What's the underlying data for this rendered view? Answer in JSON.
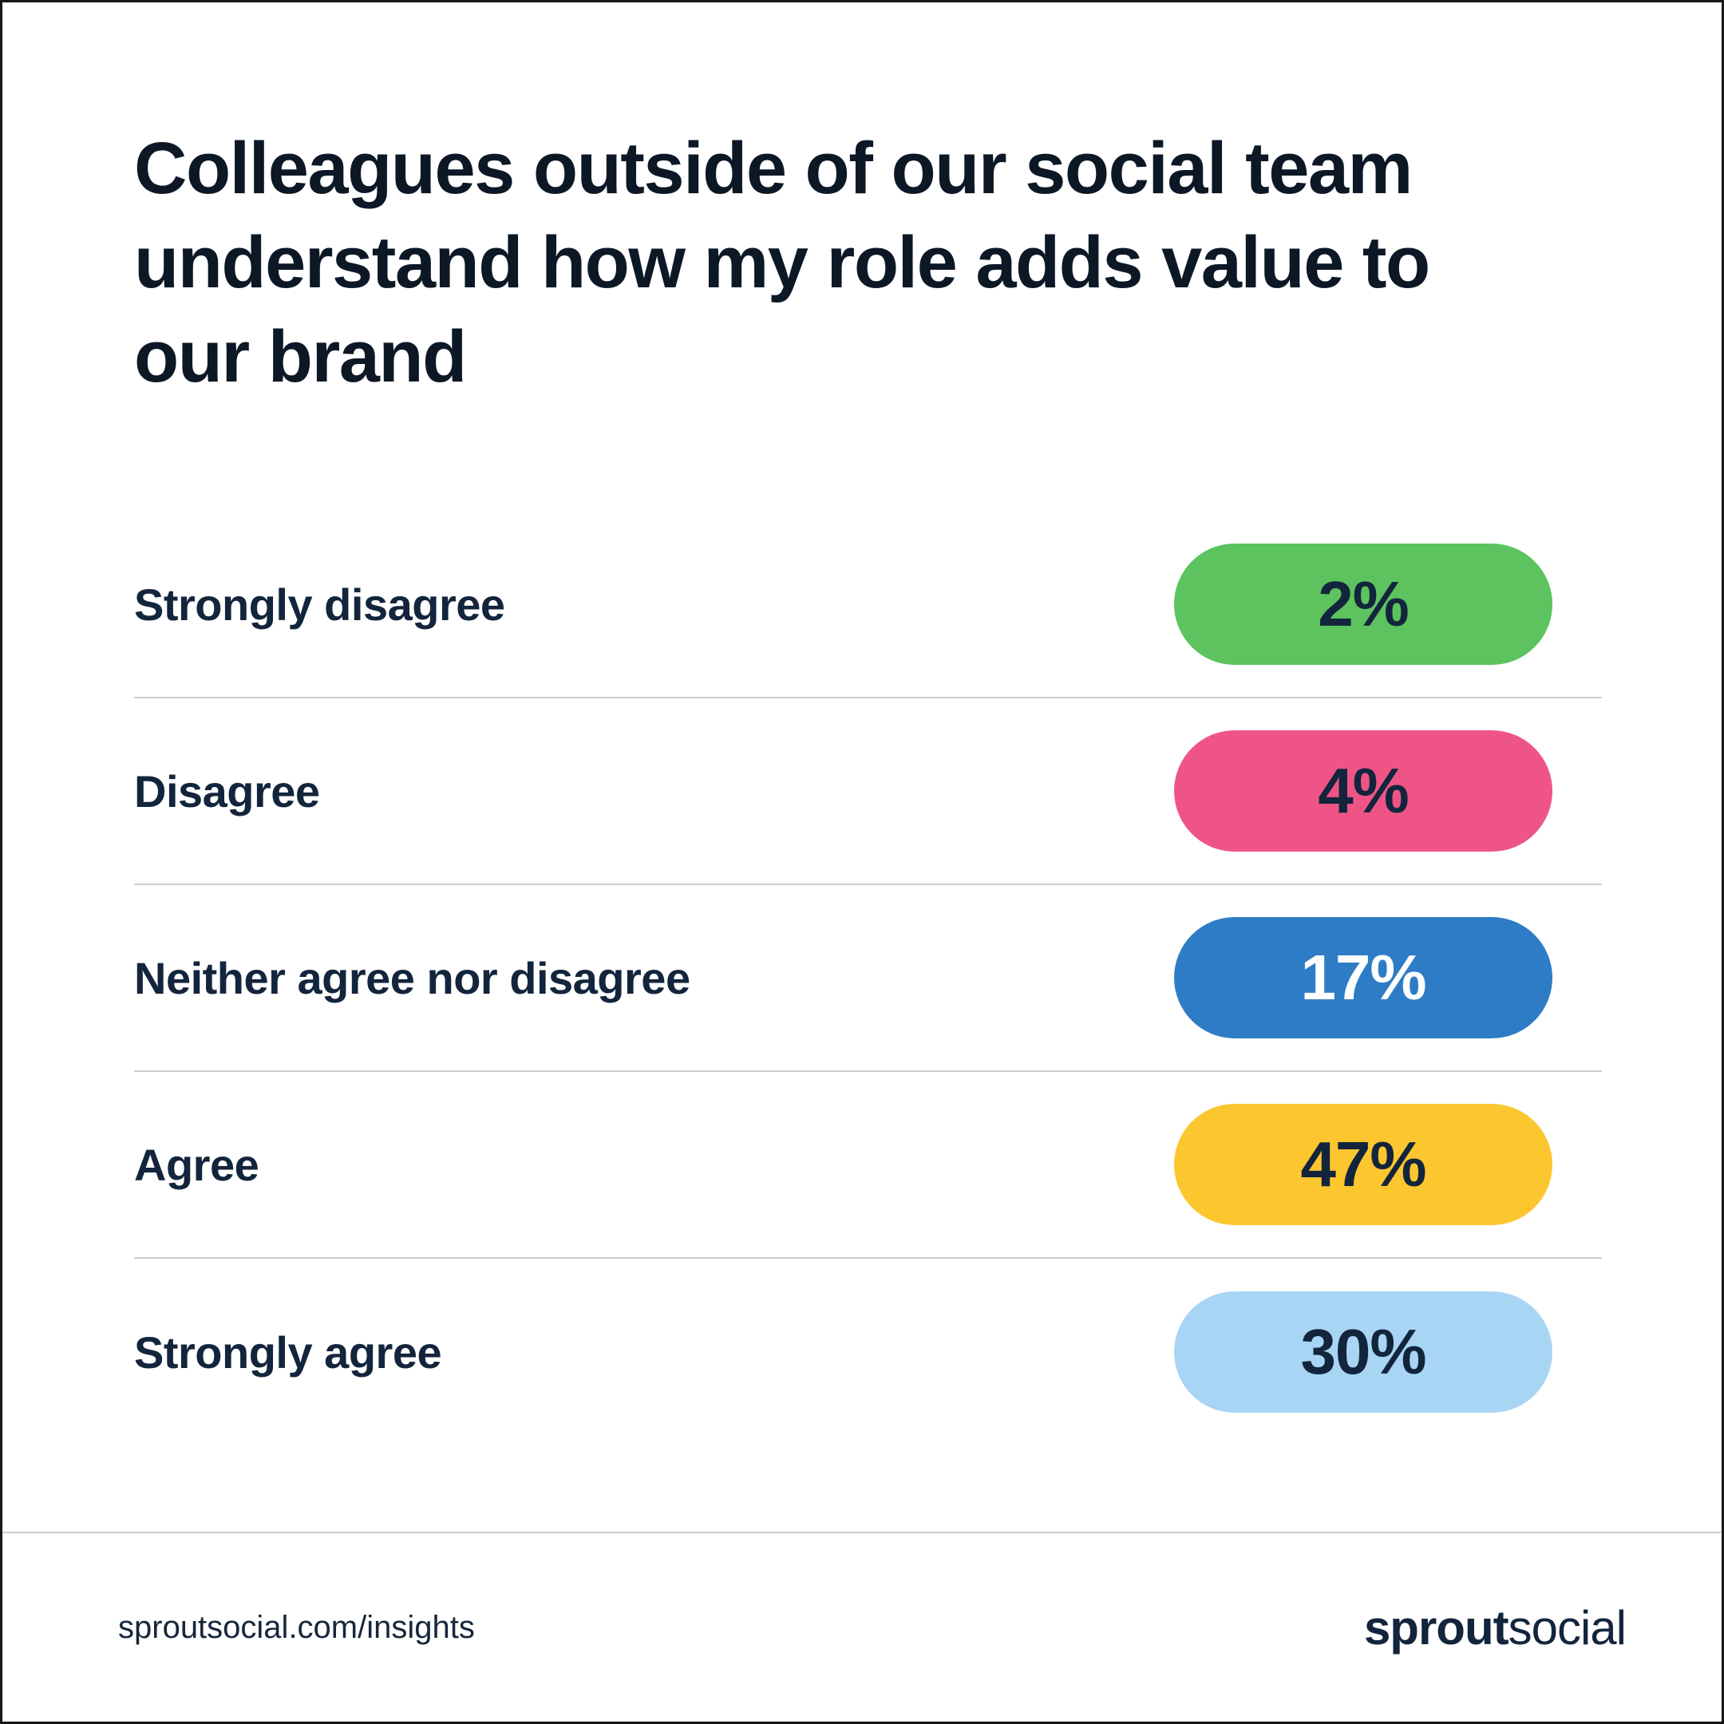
{
  "chart_data": {
    "type": "bar",
    "title": "Colleagues outside of our social team understand how my role adds value to our brand",
    "categories": [
      "Strongly disagree",
      "Disagree",
      "Neither agree nor disagree",
      "Agree",
      "Strongly agree"
    ],
    "values": [
      2,
      4,
      17,
      47,
      30
    ],
    "value_labels": [
      "2%",
      "4%",
      "17%",
      "47%",
      "30%"
    ],
    "unit": "%",
    "grid": false,
    "legend_position": "none",
    "colors": {
      "pills": [
        "#5cc35e",
        "#ee5586",
        "#2e7cc6",
        "#fcc62f",
        "#a9d5f5"
      ],
      "value_text": [
        "#13253c",
        "#13253c",
        "#ffffff",
        "#13253c",
        "#13253c"
      ],
      "label_text": "#13253c",
      "divider": "#c9cdd2"
    }
  },
  "footer": {
    "link": "sproutsocial.com/insights",
    "logo": {
      "bold": "sprout",
      "regular": "social"
    }
  }
}
